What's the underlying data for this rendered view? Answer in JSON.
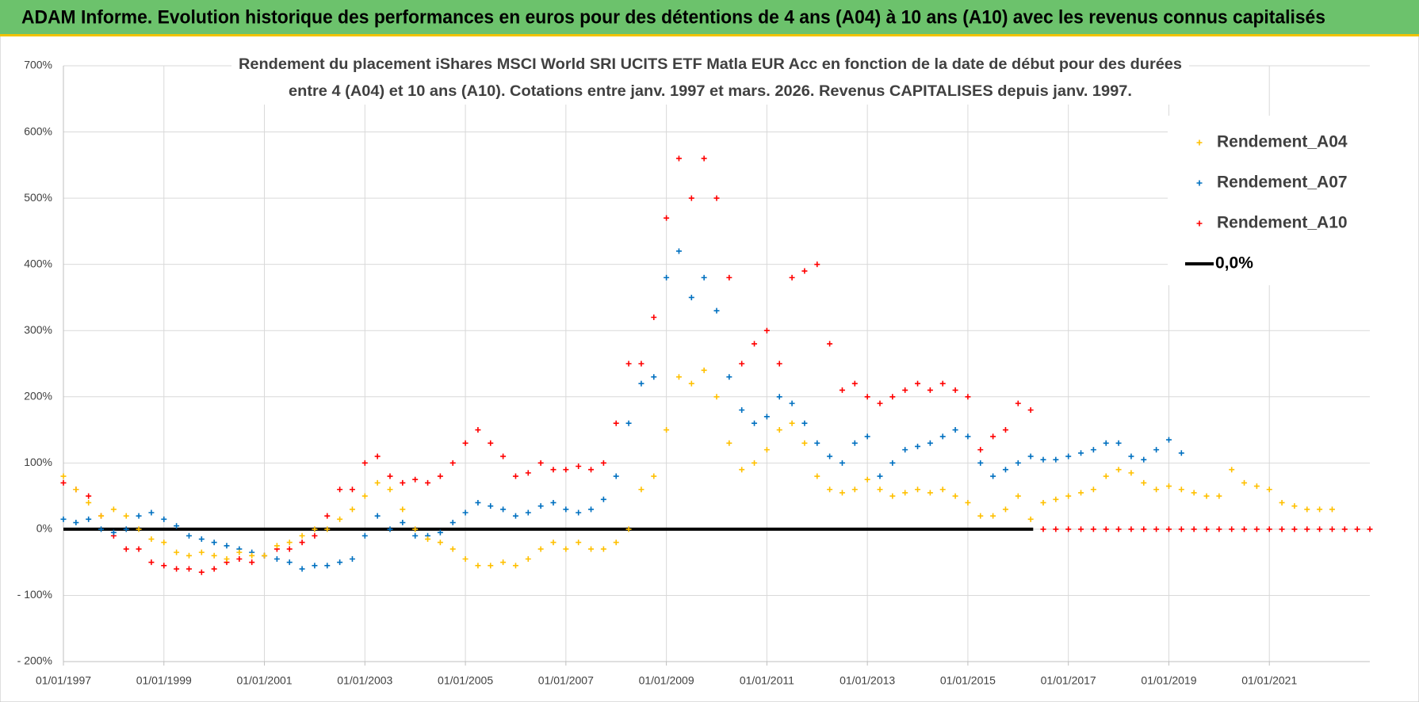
{
  "chart_data": {
    "type": "scatter",
    "title": "ADAM Informe. Evolution historique des performances en euros pour des détentions de 4 ans (A04) à 10 ans (A10) avec les revenus connus capitalisés",
    "subtitle": [
      "Rendement du placement iShares MSCI World SRI UCITS ETF Matla EUR Acc en fonction de la date de début pour des durées",
      "entre 4 (A04) et 10 ans (A10). Cotations entre janv. 1997 et mars. 2026. Revenus CAPITALISES depuis janv. 1997."
    ],
    "xlim": [
      1997,
      2023
    ],
    "xticks": [
      {
        "value": 1997,
        "label": "01/01/1997"
      },
      {
        "value": 1999,
        "label": "01/01/1999"
      },
      {
        "value": 2001,
        "label": "01/01/2001"
      },
      {
        "value": 2003,
        "label": "01/01/2003"
      },
      {
        "value": 2005,
        "label": "01/01/2005"
      },
      {
        "value": 2007,
        "label": "01/01/2007"
      },
      {
        "value": 2009,
        "label": "01/01/2009"
      },
      {
        "value": 2011,
        "label": "01/01/2011"
      },
      {
        "value": 2013,
        "label": "01/01/2013"
      },
      {
        "value": 2015,
        "label": "01/01/2015"
      },
      {
        "value": 2017,
        "label": "01/01/2017"
      },
      {
        "value": 2019,
        "label": "01/01/2019"
      },
      {
        "value": 2021,
        "label": "01/01/2021"
      }
    ],
    "ylim": [
      -200,
      700
    ],
    "yticks": [
      {
        "value": -200,
        "label": "- 200%"
      },
      {
        "value": -100,
        "label": "- 100%"
      },
      {
        "value": 0,
        "label": "0%"
      },
      {
        "value": 100,
        "label": "100%"
      },
      {
        "value": 200,
        "label": "200%"
      },
      {
        "value": 300,
        "label": "300%"
      },
      {
        "value": 400,
        "label": "400%"
      },
      {
        "value": 500,
        "label": "500%"
      },
      {
        "value": 600,
        "label": "600%"
      },
      {
        "value": 700,
        "label": "700%"
      }
    ],
    "grid": true,
    "legend": "upper right",
    "series": [
      {
        "name": "Rendement_A04",
        "color": "#ffc000",
        "x": [
          1997,
          1997.25,
          1997.5,
          1997.75,
          1998,
          1998.25,
          1998.5,
          1998.75,
          1999,
          1999.25,
          1999.5,
          1999.75,
          2000,
          2000.25,
          2000.5,
          2000.75,
          2001,
          2001.25,
          2001.5,
          2001.75,
          2002,
          2002.25,
          2002.5,
          2002.75,
          2003,
          2003.25,
          2003.5,
          2003.75,
          2004,
          2004.25,
          2004.5,
          2004.75,
          2005,
          2005.25,
          2005.5,
          2005.75,
          2006,
          2006.25,
          2006.5,
          2006.75,
          2007,
          2007.25,
          2007.5,
          2007.75,
          2008,
          2008.25,
          2008.5,
          2008.75,
          2009,
          2009.25,
          2009.5,
          2009.75,
          2010,
          2010.25,
          2010.5,
          2010.75,
          2011,
          2011.25,
          2011.5,
          2011.75,
          2012,
          2012.25,
          2012.5,
          2012.75,
          2013,
          2013.25,
          2013.5,
          2013.75,
          2014,
          2014.25,
          2014.5,
          2014.75,
          2015,
          2015.25,
          2015.5,
          2015.75,
          2016,
          2016.25,
          2016.5,
          2016.75,
          2017,
          2017.25,
          2017.5,
          2017.75,
          2018,
          2018.25,
          2018.5,
          2018.75,
          2019,
          2019.25,
          2019.5,
          2019.75,
          2020,
          2020.25,
          2020.5,
          2020.75,
          2021,
          2021.25,
          2021.5,
          2021.75,
          2022,
          2022.25
        ],
        "values": [
          80,
          60,
          40,
          20,
          30,
          20,
          0,
          -15,
          -20,
          -35,
          -40,
          -35,
          -40,
          -45,
          -35,
          -40,
          -40,
          -25,
          -20,
          -10,
          0,
          0,
          15,
          30,
          50,
          70,
          60,
          30,
          0,
          -15,
          -20,
          -30,
          -45,
          -55,
          -55,
          -50,
          -55,
          -45,
          -30,
          -20,
          -30,
          -20,
          -30,
          -30,
          -20,
          0,
          60,
          80,
          150,
          230,
          220,
          240,
          200,
          130,
          90,
          100,
          120,
          150,
          160,
          130,
          80,
          60,
          55,
          60,
          75,
          60,
          50,
          55,
          60,
          55,
          60,
          50,
          40,
          20,
          20,
          30,
          50,
          15,
          40,
          45,
          50,
          55,
          60,
          80,
          90,
          85,
          70,
          60,
          65,
          60,
          55,
          50,
          50,
          90,
          70,
          65,
          60,
          40,
          35,
          30,
          30,
          30
        ]
      },
      {
        "name": "Rendement_A07",
        "color": "#0070c0",
        "x": [
          1997,
          1997.25,
          1997.5,
          1997.75,
          1998,
          1998.25,
          1998.5,
          1998.75,
          1999,
          1999.25,
          1999.5,
          1999.75,
          2000,
          2000.25,
          2000.5,
          2000.75,
          2001,
          2001.25,
          2001.5,
          2001.75,
          2002,
          2002.25,
          2002.5,
          2002.75,
          2003,
          2003.25,
          2003.5,
          2003.75,
          2004,
          2004.25,
          2004.5,
          2004.75,
          2005,
          2005.25,
          2005.5,
          2005.75,
          2006,
          2006.25,
          2006.5,
          2006.75,
          2007,
          2007.25,
          2007.5,
          2007.75,
          2008,
          2008.25,
          2008.5,
          2008.75,
          2009,
          2009.25,
          2009.5,
          2009.75,
          2010,
          2010.25,
          2010.5,
          2010.75,
          2011,
          2011.25,
          2011.5,
          2011.75,
          2012,
          2012.25,
          2012.5,
          2012.75,
          2013,
          2013.25,
          2013.5,
          2013.75,
          2014,
          2014.25,
          2014.5,
          2014.75,
          2015,
          2015.25,
          2015.5,
          2015.75,
          2016,
          2016.25,
          2016.5,
          2016.75,
          2017,
          2017.25,
          2017.5,
          2017.75,
          2018,
          2018.25,
          2018.5,
          2018.75,
          2019,
          2019.25
        ],
        "values": [
          15,
          10,
          15,
          0,
          -5,
          0,
          20,
          25,
          15,
          5,
          -10,
          -15,
          -20,
          -25,
          -30,
          -35,
          -40,
          -45,
          -50,
          -60,
          -55,
          -55,
          -50,
          -45,
          -10,
          20,
          0,
          10,
          -10,
          -10,
          -5,
          10,
          25,
          40,
          35,
          30,
          20,
          25,
          35,
          40,
          30,
          25,
          30,
          45,
          80,
          160,
          220,
          230,
          380,
          420,
          350,
          380,
          330,
          230,
          180,
          160,
          170,
          200,
          190,
          160,
          130,
          110,
          100,
          130,
          140,
          80,
          100,
          120,
          125,
          130,
          140,
          150,
          140,
          100,
          80,
          90,
          100,
          110,
          105,
          105,
          110,
          115,
          120,
          130,
          130,
          110,
          105,
          120,
          135,
          115
        ]
      },
      {
        "name": "Rendement_A10",
        "color": "#ff0000",
        "x": [
          1997,
          1997.25,
          1997.5,
          1997.75,
          1998,
          1998.25,
          1998.5,
          1998.75,
          1999,
          1999.25,
          1999.5,
          1999.75,
          2000,
          2000.25,
          2000.5,
          2000.75,
          2001,
          2001.25,
          2001.5,
          2001.75,
          2002,
          2002.25,
          2002.5,
          2002.75,
          2003,
          2003.25,
          2003.5,
          2003.75,
          2004,
          2004.25,
          2004.5,
          2004.75,
          2005,
          2005.25,
          2005.5,
          2005.75,
          2006,
          2006.25,
          2006.5,
          2006.75,
          2007,
          2007.25,
          2007.5,
          2007.75,
          2008,
          2008.25,
          2008.5,
          2008.75,
          2009,
          2009.25,
          2009.5,
          2009.75,
          2010,
          2010.25,
          2010.5,
          2010.75,
          2011,
          2011.25,
          2011.5,
          2011.75,
          2012,
          2012.25,
          2012.5,
          2012.75,
          2013,
          2013.25,
          2013.5,
          2013.75,
          2014,
          2014.25,
          2014.5,
          2014.75,
          2015,
          2015.25,
          2015.5,
          2015.75,
          2016,
          2016.25,
          2016.5,
          2016.75,
          2017,
          2017.25,
          2017.5,
          2017.75,
          2018,
          2018.25,
          2018.5,
          2018.75,
          2019,
          2019.25,
          2019.5,
          2019.75,
          2020,
          2020.25,
          2020.5,
          2020.75,
          2021,
          2021.25,
          2021.5,
          2021.75,
          2022,
          2022.25,
          2022.5,
          2022.75,
          2023
        ],
        "values": [
          70,
          60,
          50,
          20,
          -10,
          -30,
          -30,
          -50,
          -55,
          -60,
          -60,
          -65,
          -60,
          -50,
          -45,
          -50,
          -40,
          -30,
          -30,
          -20,
          -10,
          20,
          60,
          60,
          100,
          110,
          80,
          70,
          75,
          70,
          80,
          100,
          130,
          150,
          130,
          110,
          80,
          85,
          100,
          90,
          90,
          95,
          90,
          100,
          160,
          250,
          250,
          320,
          470,
          560,
          500,
          560,
          500,
          380,
          250,
          280,
          300,
          250,
          380,
          390,
          400,
          280,
          210,
          220,
          200,
          190,
          200,
          210,
          220,
          210,
          220,
          210,
          200,
          120,
          140,
          150,
          190,
          180,
          0,
          0,
          0,
          0,
          0,
          0,
          0,
          0,
          0,
          0,
          0,
          0,
          0,
          0,
          0,
          0,
          0,
          0,
          0,
          0,
          0,
          0,
          0,
          0,
          0,
          0,
          0
        ]
      },
      {
        "name": "0,0%",
        "color": "#000000",
        "type": "line",
        "x": [
          1997,
          2016.3
        ],
        "values": [
          0,
          0
        ]
      }
    ]
  }
}
